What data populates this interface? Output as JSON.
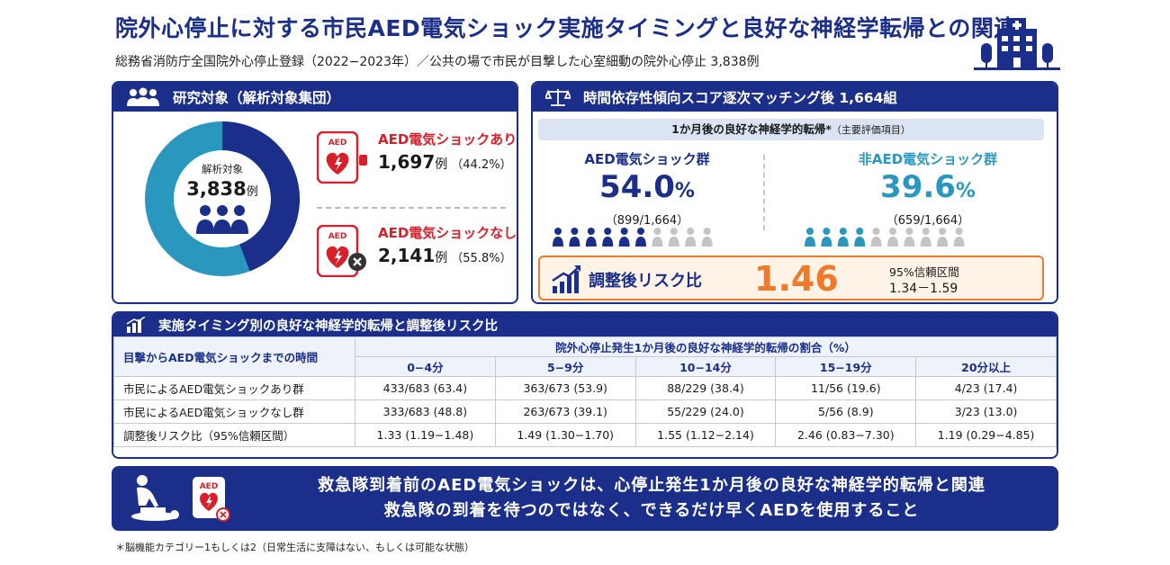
{
  "header": {
    "title": "院外心停止に対する市民AED電気ショック実施タイミングと良好な神経学転帰との関連",
    "subtitle": "総務省消防庁全国院外心停止登録（2022−2023年）／公共の場で市民が目撃した心室細動の院外心停止 3,838例"
  },
  "study": {
    "heading": "研究対象（解析対象集団）",
    "total_label": "解析対象",
    "total_value": "3,838",
    "unit": "例",
    "groups": [
      {
        "label": "AED電気ショックあり",
        "count": "1,697",
        "unit": "例",
        "pct": "（44.2%）",
        "share": 44.2
      },
      {
        "label": "AED電気ショックなし",
        "count": "2,141",
        "unit": "例",
        "pct": "（55.8%）",
        "share": 55.8
      }
    ],
    "colors": {
      "with": "#1b2f8a",
      "without": "#2a97bf",
      "accent": "#d9202a"
    }
  },
  "matching": {
    "heading": "時間依存性傾向スコア逐次マッチング後 1,664組",
    "outcome": "1か月後の良好な神経学的転帰",
    "outcome_mark": "*",
    "outcome_note": "（主要評価項目）",
    "aed": {
      "name": "AED電気ショック群",
      "pct": "54.0",
      "pct_unit": "%",
      "fraction": "（899/1,664）",
      "filled_icons": 6,
      "total_icons": 10,
      "color": "#1b2f8a"
    },
    "non_aed": {
      "name": "非AED電気ショック群",
      "pct": "39.6",
      "pct_unit": "%",
      "fraction": "（659/1,664）",
      "filled_icons": 4,
      "total_icons": 10,
      "color": "#2a97bf"
    },
    "rr_label": "調整後リスク比",
    "rr_value": "1.46",
    "ci_label": "95%信頼区間",
    "ci_value": "1.34－1.59"
  },
  "table": {
    "heading": "実施タイミング別の良好な神経学的転帰と調整後リスク比",
    "row_header": "目撃からAED電気ショックまでの時間",
    "group_header": "院外心停止発生1か月後の良好な神経学的転帰の割合（%）",
    "columns": [
      "0−4分",
      "5−9分",
      "10−14分",
      "15−19分",
      "20分以上"
    ],
    "rows": [
      {
        "label": "市民によるAED電気ショックあり群",
        "cells": [
          "433/683 (63.4)",
          "363/673 (53.9)",
          "88/229 (38.4)",
          "11/56 (19.6)",
          "4/23 (17.4)"
        ]
      },
      {
        "label": "市民によるAED電気ショックなし群",
        "cells": [
          "333/683 (48.8)",
          "263/673 (39.1)",
          "55/229 (24.0)",
          "5/56 (8.9)",
          "3/23 (13.0)"
        ]
      },
      {
        "label": "調整後リスク比（95%信頼区間）",
        "cells": [
          "1.33 (1.19−1.48)",
          "1.49 (1.30−1.70)",
          "1.55 (1.12−2.14)",
          "2.46 (0.83−7.30)",
          "1.19 (0.29−4.85)"
        ]
      }
    ]
  },
  "conclusion": {
    "line1": "救急隊到着前のAED電気ショックは、心停止発生1か月後の良好な神経学的転帰と関連",
    "line2": "救急隊の到着を待つのではなく、できるだけ早くAEDを使用すること",
    "icon_label": "AED"
  },
  "footnote": "＊脳機能カテゴリー1もしくは2（日常生活に支障はない、もしくは可能な状態）"
}
